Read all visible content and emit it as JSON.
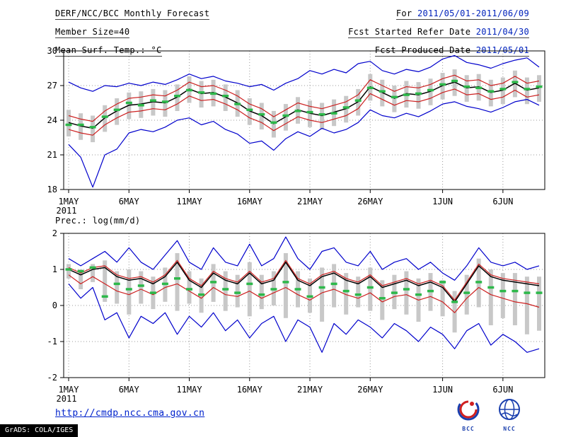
{
  "header": {
    "rows_left": [
      {
        "text": "DERF/NCC/BCC Monthly Forecast"
      },
      {
        "text": "Member Size=40"
      },
      {
        "text": "Mean Surf. Temp.: °C"
      }
    ],
    "rows_right": [
      {
        "label": "For ",
        "value": "2011/05/01-2011/06/09"
      },
      {
        "label": "Fcst Started Refer Date ",
        "value": "2011/04/30"
      },
      {
        "label": "Fcst Produced Date ",
        "value": "2011/05/01"
      }
    ]
  },
  "footer": {
    "url": "http://cmdp.ncc.cma.gov.cn",
    "grads_credit": "GrADS: COLA/IGES",
    "logos": [
      {
        "name": "BCC"
      },
      {
        "name": "NCC"
      }
    ]
  },
  "colors": {
    "envelope": "#0000cc",
    "quartile": "#cc2020",
    "mean": "#000000",
    "observation": "#2db84a",
    "spread_bar": "#c8c8c8",
    "grid": "#9a9a9a",
    "date_text": "#0022bb"
  },
  "chart_data": [
    {
      "type": "line",
      "title": "Mean Surf. Temp.: °C",
      "xlabel": "",
      "ylabel": "°C",
      "ylim": [
        18,
        30
      ],
      "yticks": [
        18,
        21,
        24,
        27,
        30
      ],
      "grid": "dotted",
      "legend": "none",
      "x_start": "2011-05-01",
      "x_end": "2011-06-09",
      "n_days": 40,
      "xticks": [
        {
          "day": 1,
          "label": "1MAY",
          "sub": "2011"
        },
        {
          "day": 6,
          "label": "6MAY"
        },
        {
          "day": 11,
          "label": "11MAY"
        },
        {
          "day": 16,
          "label": "16MAY"
        },
        {
          "day": 21,
          "label": "21MAY"
        },
        {
          "day": 26,
          "label": "26MAY"
        },
        {
          "day": 32,
          "label": "1JUN"
        },
        {
          "day": 37,
          "label": "6JUN"
        }
      ],
      "series": [
        {
          "name": "spread-bar",
          "style": "bar",
          "color": "#c8c8c8",
          "low": [
            22.6,
            22.3,
            22.1,
            23.0,
            23.6,
            24.1,
            24.2,
            24.4,
            24.3,
            24.8,
            25.5,
            25.1,
            25.2,
            24.8,
            24.3,
            23.6,
            23.2,
            22.5,
            23.1,
            23.7,
            23.4,
            23.2,
            23.5,
            23.8,
            24.4,
            25.7,
            25.2,
            24.7,
            25.1,
            25.0,
            25.3,
            25.8,
            26.1,
            25.6,
            25.7,
            25.2,
            25.4,
            26.0,
            25.4,
            25.6
          ],
          "high": [
            24.9,
            24.6,
            24.4,
            25.3,
            25.9,
            26.4,
            26.5,
            26.7,
            26.6,
            27.1,
            27.8,
            27.4,
            27.5,
            27.1,
            26.6,
            25.9,
            25.5,
            24.8,
            25.4,
            26.0,
            25.7,
            25.5,
            25.8,
            26.1,
            26.7,
            28.0,
            27.5,
            27.0,
            27.4,
            27.3,
            27.6,
            28.1,
            28.4,
            27.9,
            28.0,
            27.5,
            27.7,
            28.3,
            27.7,
            27.9
          ]
        },
        {
          "name": "ensemble-max",
          "style": "line",
          "color": "#0000cc",
          "values": [
            27.3,
            26.8,
            26.5,
            27.0,
            26.9,
            27.2,
            27.0,
            27.3,
            27.1,
            27.5,
            28.0,
            27.6,
            27.8,
            27.4,
            27.2,
            26.9,
            27.1,
            26.6,
            27.2,
            27.6,
            28.3,
            28.0,
            28.4,
            28.1,
            28.9,
            29.1,
            28.3,
            28.0,
            28.4,
            28.2,
            28.6,
            29.3,
            29.6,
            29.0,
            28.8,
            28.5,
            28.9,
            29.2,
            29.4,
            28.6
          ]
        },
        {
          "name": "ensemble-min",
          "style": "line",
          "color": "#0000cc",
          "values": [
            21.9,
            20.8,
            18.2,
            21.0,
            21.5,
            22.9,
            23.2,
            23.0,
            23.4,
            24.0,
            24.2,
            23.6,
            23.9,
            23.2,
            22.8,
            22.0,
            22.2,
            21.4,
            22.4,
            23.0,
            22.6,
            23.3,
            22.9,
            23.2,
            23.8,
            24.9,
            24.4,
            24.2,
            24.6,
            24.3,
            24.8,
            25.4,
            25.6,
            25.2,
            25.0,
            24.7,
            25.1,
            25.6,
            25.8,
            25.3
          ]
        },
        {
          "name": "upper-quartile",
          "style": "line",
          "color": "#cc2020",
          "values": [
            24.4,
            24.1,
            23.9,
            24.8,
            25.4,
            25.9,
            26.0,
            26.2,
            26.1,
            26.6,
            27.3,
            26.9,
            27.0,
            26.6,
            26.1,
            25.4,
            25.0,
            24.3,
            24.9,
            25.5,
            25.2,
            25.0,
            25.3,
            25.6,
            26.2,
            27.5,
            27.0,
            26.5,
            26.9,
            26.8,
            27.1,
            27.6,
            27.9,
            27.4,
            27.5,
            27.0,
            27.2,
            27.8,
            27.2,
            27.4
          ]
        },
        {
          "name": "lower-quartile",
          "style": "line",
          "color": "#cc2020",
          "values": [
            23.2,
            22.9,
            22.7,
            23.6,
            24.2,
            24.7,
            24.8,
            25.0,
            24.9,
            25.4,
            26.1,
            25.7,
            25.8,
            25.4,
            24.9,
            24.2,
            23.8,
            23.1,
            23.7,
            24.3,
            24.0,
            23.8,
            24.1,
            24.4,
            25.0,
            26.3,
            25.8,
            25.3,
            25.7,
            25.6,
            25.9,
            26.4,
            26.7,
            26.2,
            26.3,
            25.8,
            26.0,
            26.6,
            26.0,
            26.2
          ]
        },
        {
          "name": "ensemble-mean",
          "style": "line",
          "color": "#000000",
          "width": 1.5,
          "values": [
            23.8,
            23.5,
            23.3,
            24.2,
            24.8,
            25.3,
            25.4,
            25.6,
            25.5,
            26.0,
            26.7,
            26.3,
            26.4,
            26.0,
            25.5,
            24.8,
            24.4,
            23.7,
            24.3,
            24.9,
            24.6,
            24.4,
            24.7,
            25.0,
            25.6,
            26.9,
            26.4,
            25.9,
            26.3,
            26.2,
            26.5,
            27.0,
            27.3,
            26.8,
            26.9,
            26.4,
            26.6,
            27.2,
            26.6,
            26.8
          ]
        },
        {
          "name": "observation",
          "style": "dash",
          "color": "#2db84a",
          "values": [
            23.6,
            23.6,
            23.4,
            24.3,
            24.9,
            25.5,
            25.3,
            25.7,
            25.6,
            26.1,
            26.6,
            26.4,
            26.3,
            26.1,
            25.4,
            24.9,
            24.5,
            23.8,
            24.4,
            24.8,
            24.7,
            24.5,
            24.6,
            25.1,
            25.7,
            26.8,
            26.5,
            26.0,
            26.2,
            26.3,
            26.6,
            27.1,
            27.4,
            26.9,
            26.8,
            26.5,
            26.7,
            27.3,
            26.7,
            26.9
          ]
        }
      ]
    },
    {
      "type": "line",
      "title": "Prec.: log(mm/d)",
      "xlabel": "",
      "ylabel": "log(mm/d)",
      "ylim": [
        -2,
        2
      ],
      "yticks": [
        -2,
        -1,
        0,
        1,
        2
      ],
      "grid": "dotted",
      "legend": "none",
      "x_start": "2011-05-01",
      "x_end": "2011-06-09",
      "n_days": 40,
      "xticks": [
        {
          "day": 1,
          "label": "1MAY",
          "sub": "2011"
        },
        {
          "day": 6,
          "label": "6MAY"
        },
        {
          "day": 11,
          "label": "11MAY"
        },
        {
          "day": 16,
          "label": "16MAY"
        },
        {
          "day": 21,
          "label": "21MAY"
        },
        {
          "day": 26,
          "label": "26MAY"
        },
        {
          "day": 32,
          "label": "1JUN"
        },
        {
          "day": 37,
          "label": "6JUN"
        }
      ],
      "series": [
        {
          "name": "spread-bar",
          "style": "bar",
          "color": "#c8c8c8",
          "low": [
            0.75,
            0.45,
            0.65,
            0.1,
            0.05,
            -0.25,
            0.05,
            -0.1,
            0.1,
            -0.15,
            0.05,
            -0.2,
            0.1,
            -0.15,
            -0.05,
            -0.3,
            -0.1,
            0.0,
            -0.35,
            -0.05,
            -0.2,
            -0.45,
            -0.05,
            -0.25,
            -0.05,
            -0.15,
            -0.4,
            -0.1,
            -0.25,
            -0.45,
            -0.15,
            -0.3,
            -0.75,
            -0.25,
            -0.05,
            -0.55,
            -0.35,
            -0.55,
            -0.8,
            -0.7
          ],
          "high": [
            1.15,
            1.0,
            1.15,
            1.25,
            0.95,
            1.0,
            0.95,
            0.8,
            1.05,
            1.45,
            0.95,
            0.75,
            1.15,
            0.95,
            0.85,
            1.2,
            0.85,
            0.95,
            1.45,
            0.95,
            0.75,
            1.05,
            1.15,
            0.9,
            0.8,
            1.05,
            0.7,
            0.85,
            0.95,
            0.75,
            0.9,
            0.7,
            0.4,
            0.85,
            1.3,
            1.0,
            0.9,
            0.9,
            0.8,
            0.8
          ]
        },
        {
          "name": "ensemble-max",
          "style": "line",
          "color": "#0000cc",
          "values": [
            1.3,
            1.1,
            1.3,
            1.5,
            1.2,
            1.6,
            1.2,
            1.0,
            1.4,
            1.8,
            1.2,
            1.0,
            1.6,
            1.2,
            1.1,
            1.7,
            1.1,
            1.3,
            1.9,
            1.3,
            1.0,
            1.5,
            1.6,
            1.2,
            1.1,
            1.5,
            1.0,
            1.2,
            1.3,
            1.0,
            1.2,
            0.9,
            0.7,
            1.1,
            1.6,
            1.2,
            1.1,
            1.2,
            1.0,
            1.1
          ]
        },
        {
          "name": "ensemble-min",
          "style": "line",
          "color": "#0000cc",
          "values": [
            0.6,
            0.2,
            0.5,
            -0.4,
            -0.2,
            -0.9,
            -0.3,
            -0.5,
            -0.2,
            -0.8,
            -0.3,
            -0.6,
            -0.2,
            -0.7,
            -0.4,
            -0.9,
            -0.5,
            -0.3,
            -1.0,
            -0.4,
            -0.6,
            -1.3,
            -0.5,
            -0.8,
            -0.4,
            -0.6,
            -0.9,
            -0.5,
            -0.7,
            -1.0,
            -0.6,
            -0.8,
            -1.2,
            -0.7,
            -0.5,
            -1.1,
            -0.8,
            -1.0,
            -1.3,
            -1.2
          ]
        },
        {
          "name": "upper-quartile",
          "style": "line",
          "color": "#cc2020",
          "values": [
            1.05,
            0.9,
            1.05,
            1.1,
            0.85,
            0.75,
            0.8,
            0.65,
            0.85,
            1.25,
            0.75,
            0.55,
            0.95,
            0.75,
            0.65,
            0.95,
            0.65,
            0.75,
            1.25,
            0.75,
            0.6,
            0.85,
            0.95,
            0.75,
            0.65,
            0.85,
            0.55,
            0.65,
            0.75,
            0.6,
            0.7,
            0.55,
            0.15,
            0.65,
            1.15,
            0.85,
            0.75,
            0.7,
            0.65,
            0.6
          ]
        },
        {
          "name": "lower-quartile",
          "style": "line",
          "color": "#cc2020",
          "values": [
            0.85,
            0.6,
            0.8,
            0.6,
            0.4,
            0.3,
            0.45,
            0.3,
            0.5,
            0.6,
            0.4,
            0.2,
            0.5,
            0.3,
            0.25,
            0.4,
            0.2,
            0.35,
            0.5,
            0.3,
            0.15,
            0.35,
            0.45,
            0.3,
            0.2,
            0.35,
            0.1,
            0.25,
            0.3,
            0.15,
            0.25,
            0.1,
            -0.2,
            0.2,
            0.5,
            0.3,
            0.2,
            0.1,
            0.05,
            -0.05
          ]
        },
        {
          "name": "ensemble-mean",
          "style": "line",
          "color": "#000000",
          "width": 1.5,
          "values": [
            1.0,
            0.85,
            1.0,
            1.05,
            0.8,
            0.7,
            0.75,
            0.6,
            0.8,
            1.2,
            0.7,
            0.5,
            0.9,
            0.7,
            0.6,
            0.9,
            0.6,
            0.7,
            1.2,
            0.7,
            0.55,
            0.8,
            0.9,
            0.7,
            0.6,
            0.8,
            0.5,
            0.6,
            0.7,
            0.55,
            0.65,
            0.5,
            0.1,
            0.6,
            1.1,
            0.8,
            0.7,
            0.65,
            0.6,
            0.55
          ]
        },
        {
          "name": "observation",
          "style": "dash",
          "color": "#2db84a",
          "values": [
            1.0,
            0.95,
            1.05,
            0.25,
            0.6,
            0.45,
            0.55,
            0.35,
            0.6,
            0.75,
            0.45,
            0.3,
            0.65,
            0.45,
            0.35,
            0.6,
            0.3,
            0.45,
            0.65,
            0.45,
            0.25,
            0.5,
            0.6,
            0.4,
            0.3,
            0.5,
            0.2,
            0.35,
            0.45,
            0.3,
            0.4,
            0.65,
            0.1,
            0.35,
            0.65,
            0.5,
            0.4,
            0.4,
            0.35,
            0.35
          ]
        }
      ]
    }
  ]
}
